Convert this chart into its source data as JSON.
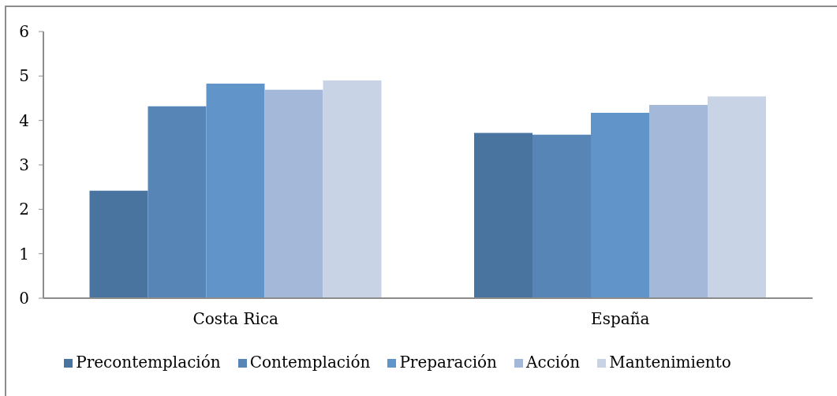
{
  "chart_data": {
    "type": "bar",
    "categories": [
      "Costa Rica",
      "España"
    ],
    "series": [
      {
        "name": "Precontemplación",
        "color": "#48749f",
        "values": [
          2.42,
          3.72
        ]
      },
      {
        "name": "Contemplación",
        "color": "#5685b6",
        "values": [
          4.32,
          3.68
        ]
      },
      {
        "name": "Preparación",
        "color": "#6195c9",
        "values": [
          4.83,
          4.17
        ]
      },
      {
        "name": "Acción",
        "color": "#a4b8da",
        "values": [
          4.69,
          4.35
        ]
      },
      {
        "name": "Mantenimiento",
        "color": "#c9d3e6",
        "values": [
          4.9,
          4.54
        ]
      }
    ],
    "ylim": [
      0,
      6
    ],
    "yticks": [
      0,
      1,
      2,
      3,
      4,
      5,
      6
    ],
    "legend": "bottom"
  }
}
